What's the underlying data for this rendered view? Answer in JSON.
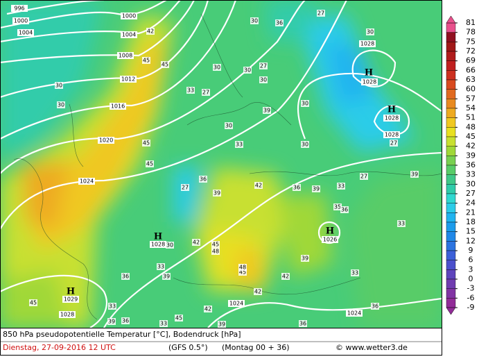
{
  "map": {
    "pressure_labels": [
      "996",
      "1000",
      "1004",
      "1000",
      "1004",
      "1008",
      "1012",
      "1016",
      "1020",
      "1024",
      "1028",
      "1028",
      "1028",
      "1028",
      "1028",
      "1029",
      "1028",
      "1026",
      "1024",
      "1024"
    ],
    "highs": [
      "H",
      "H",
      "H",
      "H",
      "H"
    ],
    "temperature_labels": [
      "42",
      "45",
      "45",
      "33",
      "27",
      "30",
      "30",
      "36",
      "27",
      "30",
      "30",
      "27",
      "30",
      "30",
      "39",
      "33",
      "30",
      "30",
      "27",
      "39",
      "27",
      "33",
      "36",
      "39",
      "42",
      "39",
      "36",
      "27",
      "45",
      "45",
      "30",
      "30",
      "33",
      "35",
      "36",
      "39",
      "42",
      "45",
      "48",
      "42",
      "48",
      "45",
      "42",
      "30",
      "33",
      "39",
      "36",
      "33",
      "36",
      "39",
      "45",
      "33",
      "39",
      "36",
      "33",
      "36",
      "42",
      "45"
    ]
  },
  "legend": {
    "levels": [
      81,
      78,
      75,
      72,
      69,
      66,
      63,
      60,
      57,
      54,
      51,
      48,
      45,
      42,
      39,
      36,
      33,
      30,
      27,
      24,
      21,
      18,
      15,
      12,
      9,
      6,
      3,
      0,
      -3,
      -6,
      -9
    ],
    "colors": [
      "#e8508c",
      "#901020",
      "#a01818",
      "#b01c1c",
      "#c02020",
      "#cc3020",
      "#d84a20",
      "#e06a20",
      "#e88a20",
      "#eeaa20",
      "#f0c820",
      "#e8e020",
      "#c8e030",
      "#a0d838",
      "#78d050",
      "#58cc68",
      "#40c888",
      "#30ccaa",
      "#30d8d0",
      "#2ccce8",
      "#20b4f0",
      "#1c9cec",
      "#2088e8",
      "#2c74e0",
      "#3c60d8",
      "#4c50cc",
      "#5e44bc",
      "#703cb0",
      "#8234a4",
      "#922c98"
    ]
  },
  "footer": {
    "title": "850 hPa pseudopotentielle Temperatur [°C], Bodendruck [hPa]",
    "date": "Dienstag, 27-09-2016  12 UTC",
    "model": "(GFS 0.5°)",
    "run": "(Montag 00 + 36)",
    "credit": "© www.wetter3.de"
  }
}
